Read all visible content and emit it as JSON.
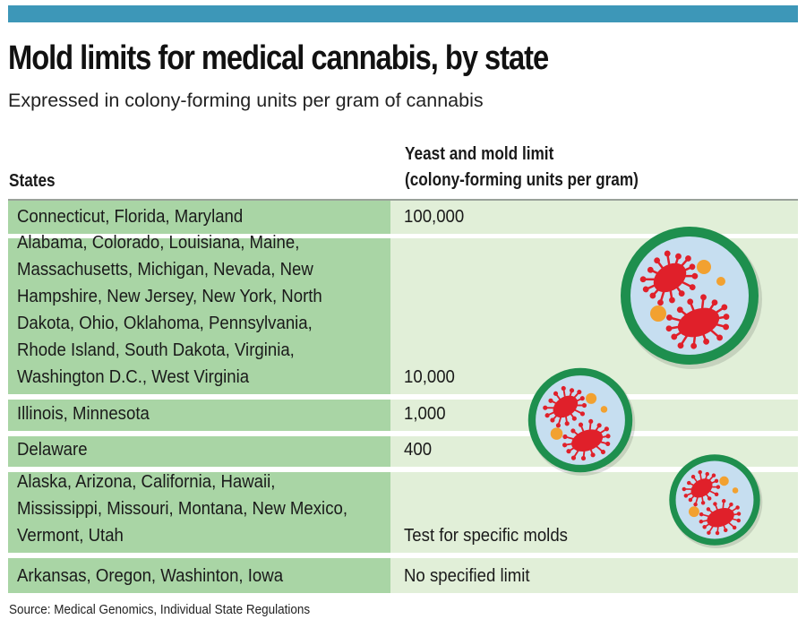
{
  "header": {
    "title": "Mold limits for medical cannabis, by state",
    "subtitle": "Expressed in colony-forming units per gram of cannabis"
  },
  "table": {
    "columns": {
      "states": "States",
      "limit_line1": "Yeast and mold limit",
      "limit_line2": "(colony-forming units per gram)"
    },
    "rows": [
      {
        "states": "Connecticut, Florida, Maryland",
        "limit": "100,000"
      },
      {
        "states": "Alabama, Colorado, Louisiana, Maine, Massachusetts, Michigan, Nevada, New Hampshire, New Jersey, New York, North Dakota, Ohio, Oklahoma, Pennsylvania, Rhode Island, South Dakota, Virginia, Washington D.C., West Virginia",
        "limit": "10,000"
      },
      {
        "states": "Illinois, Minnesota",
        "limit": "1,000"
      },
      {
        "states": "Delaware",
        "limit": "400"
      },
      {
        "states": "Alaska, Arizona, California, Hawaii, Mississippi, Missouri, Montana, New Mexico, Vermont, Utah",
        "limit": "Test for specific molds"
      },
      {
        "states": "Arkansas, Oregon, Washinton, Iowa",
        "limit": "No specified limit"
      }
    ]
  },
  "footer": {
    "source": "Source: Medical Genomics, Individual State Regulations"
  },
  "illustrations": [
    {
      "name": "petri-dish-large-icon"
    },
    {
      "name": "petri-dish-medium-icon"
    },
    {
      "name": "petri-dish-small-icon"
    }
  ],
  "colors": {
    "accent_bar": "#3d97b8",
    "state_cell": "#a9d5a5",
    "limit_cell": "#e1efd8",
    "dish_rim": "#1e8f4e",
    "dish_fill": "#c6def0",
    "mold": "#e0202a",
    "spore": "#f2a130"
  }
}
